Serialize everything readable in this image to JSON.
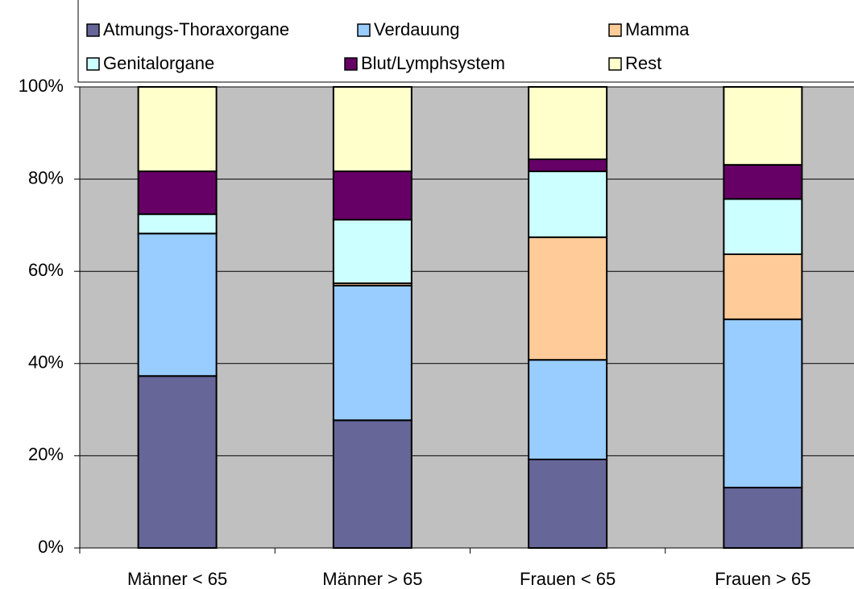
{
  "chart_data": {
    "type": "stacked_bar",
    "categories": [
      "Männer < 65",
      "Männer > 65",
      "Frauen < 65",
      "Frauen > 65"
    ],
    "series": [
      {
        "name": "Atmungs-Thoraxorgane",
        "color": "#666699",
        "values": [
          37.3,
          27.7,
          19.2,
          13.1
        ]
      },
      {
        "name": "Verdauung",
        "color": "#99ccff",
        "values": [
          30.9,
          29.2,
          21.6,
          36.5
        ]
      },
      {
        "name": "Mamma",
        "color": "#ffcc99",
        "values": [
          0,
          0.5,
          26.6,
          14.1
        ]
      },
      {
        "name": "Genitalorgane",
        "color": "#ccffff",
        "values": [
          4.2,
          13.8,
          14.3,
          12.0
        ]
      },
      {
        "name": "Blut/Lymphsystem",
        "color": "#660066",
        "values": [
          9.3,
          10.5,
          2.6,
          7.4
        ]
      },
      {
        "name": "Rest",
        "color": "#ffffcc",
        "values": [
          18.3,
          18.3,
          15.7,
          16.9
        ]
      }
    ],
    "ylim": [
      0,
      100
    ],
    "yticks": [
      {
        "value": 0,
        "label": "0%"
      },
      {
        "value": 20,
        "label": "20%"
      },
      {
        "value": 40,
        "label": "40%"
      },
      {
        "value": 60,
        "label": "60%"
      },
      {
        "value": 80,
        "label": "80%"
      },
      {
        "value": 100,
        "label": "100%"
      }
    ],
    "grid": true,
    "legend": "top",
    "plot_background": "#c0c0c0"
  }
}
